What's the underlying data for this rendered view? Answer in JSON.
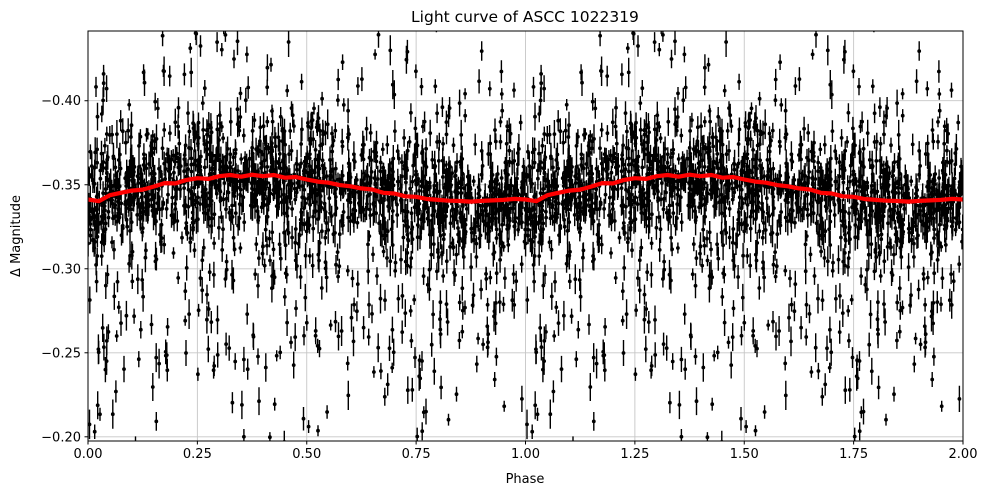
{
  "chart_data": {
    "type": "scatter",
    "title": "Light curve of ASCC 1022319",
    "xlabel": "Phase",
    "ylabel": "Δ Magnitude",
    "xlim": [
      0.0,
      2.0
    ],
    "ylim_top": -0.4415,
    "ylim_bottom": -0.1975,
    "y_axis_inverted": true,
    "grid": true,
    "legend": "none",
    "xticks": [
      0.0,
      0.25,
      0.5,
      0.75,
      1.0,
      1.25,
      1.5,
      1.75,
      2.0
    ],
    "xtick_labels": [
      "0.00",
      "0.25",
      "0.50",
      "0.75",
      "1.00",
      "1.25",
      "1.50",
      "1.75",
      "2.00"
    ],
    "yticks": [
      -0.4,
      -0.35,
      -0.3,
      -0.25,
      -0.2
    ],
    "ytick_labels": [
      "−0.40",
      "−0.35",
      "−0.30",
      "−0.25",
      "−0.20"
    ],
    "series": [
      {
        "name": "observations",
        "type": "scatter-errorbar",
        "color": "#000000",
        "marker": "point",
        "periodic_repeat": true,
        "generated": {
          "seed": 20240615,
          "n_per_period": 1800,
          "core_fraction": 0.62,
          "core_sigma": 0.016,
          "core_shift": 0.002,
          "tail_sigma": 0.06,
          "tail_shift": 0.015,
          "err_min": 0.003,
          "err_max": 0.009
        }
      },
      {
        "name": "binned-mean",
        "type": "line",
        "color": "#ff0000",
        "linewidth": 4.2,
        "periodic_repeat": true,
        "phase": [
          0.0,
          0.025,
          0.05,
          0.075,
          0.1,
          0.125,
          0.15,
          0.175,
          0.2,
          0.225,
          0.25,
          0.275,
          0.3,
          0.325,
          0.35,
          0.375,
          0.4,
          0.425,
          0.45,
          0.475,
          0.5,
          0.525,
          0.55,
          0.575,
          0.6,
          0.625,
          0.65,
          0.675,
          0.7,
          0.725,
          0.75,
          0.775,
          0.8,
          0.825,
          0.85,
          0.875,
          0.9,
          0.925,
          0.95,
          0.975,
          1.0
        ],
        "mag": [
          -0.3412,
          -0.3402,
          -0.3438,
          -0.3452,
          -0.3465,
          -0.3471,
          -0.3489,
          -0.351,
          -0.3508,
          -0.3528,
          -0.3539,
          -0.3535,
          -0.3551,
          -0.3558,
          -0.3548,
          -0.356,
          -0.3551,
          -0.3558,
          -0.3542,
          -0.3546,
          -0.3531,
          -0.3519,
          -0.3512,
          -0.3498,
          -0.3491,
          -0.3478,
          -0.3472,
          -0.3452,
          -0.3448,
          -0.3431,
          -0.3428,
          -0.3415,
          -0.341,
          -0.3405,
          -0.3403,
          -0.34,
          -0.3404,
          -0.3407,
          -0.341,
          -0.3416,
          -0.3412
        ]
      }
    ]
  },
  "colors": {
    "mean_line": "#ff0000",
    "points": "#000000",
    "grid": "#c6c6c6",
    "axis": "#000000",
    "background": "#ffffff"
  }
}
